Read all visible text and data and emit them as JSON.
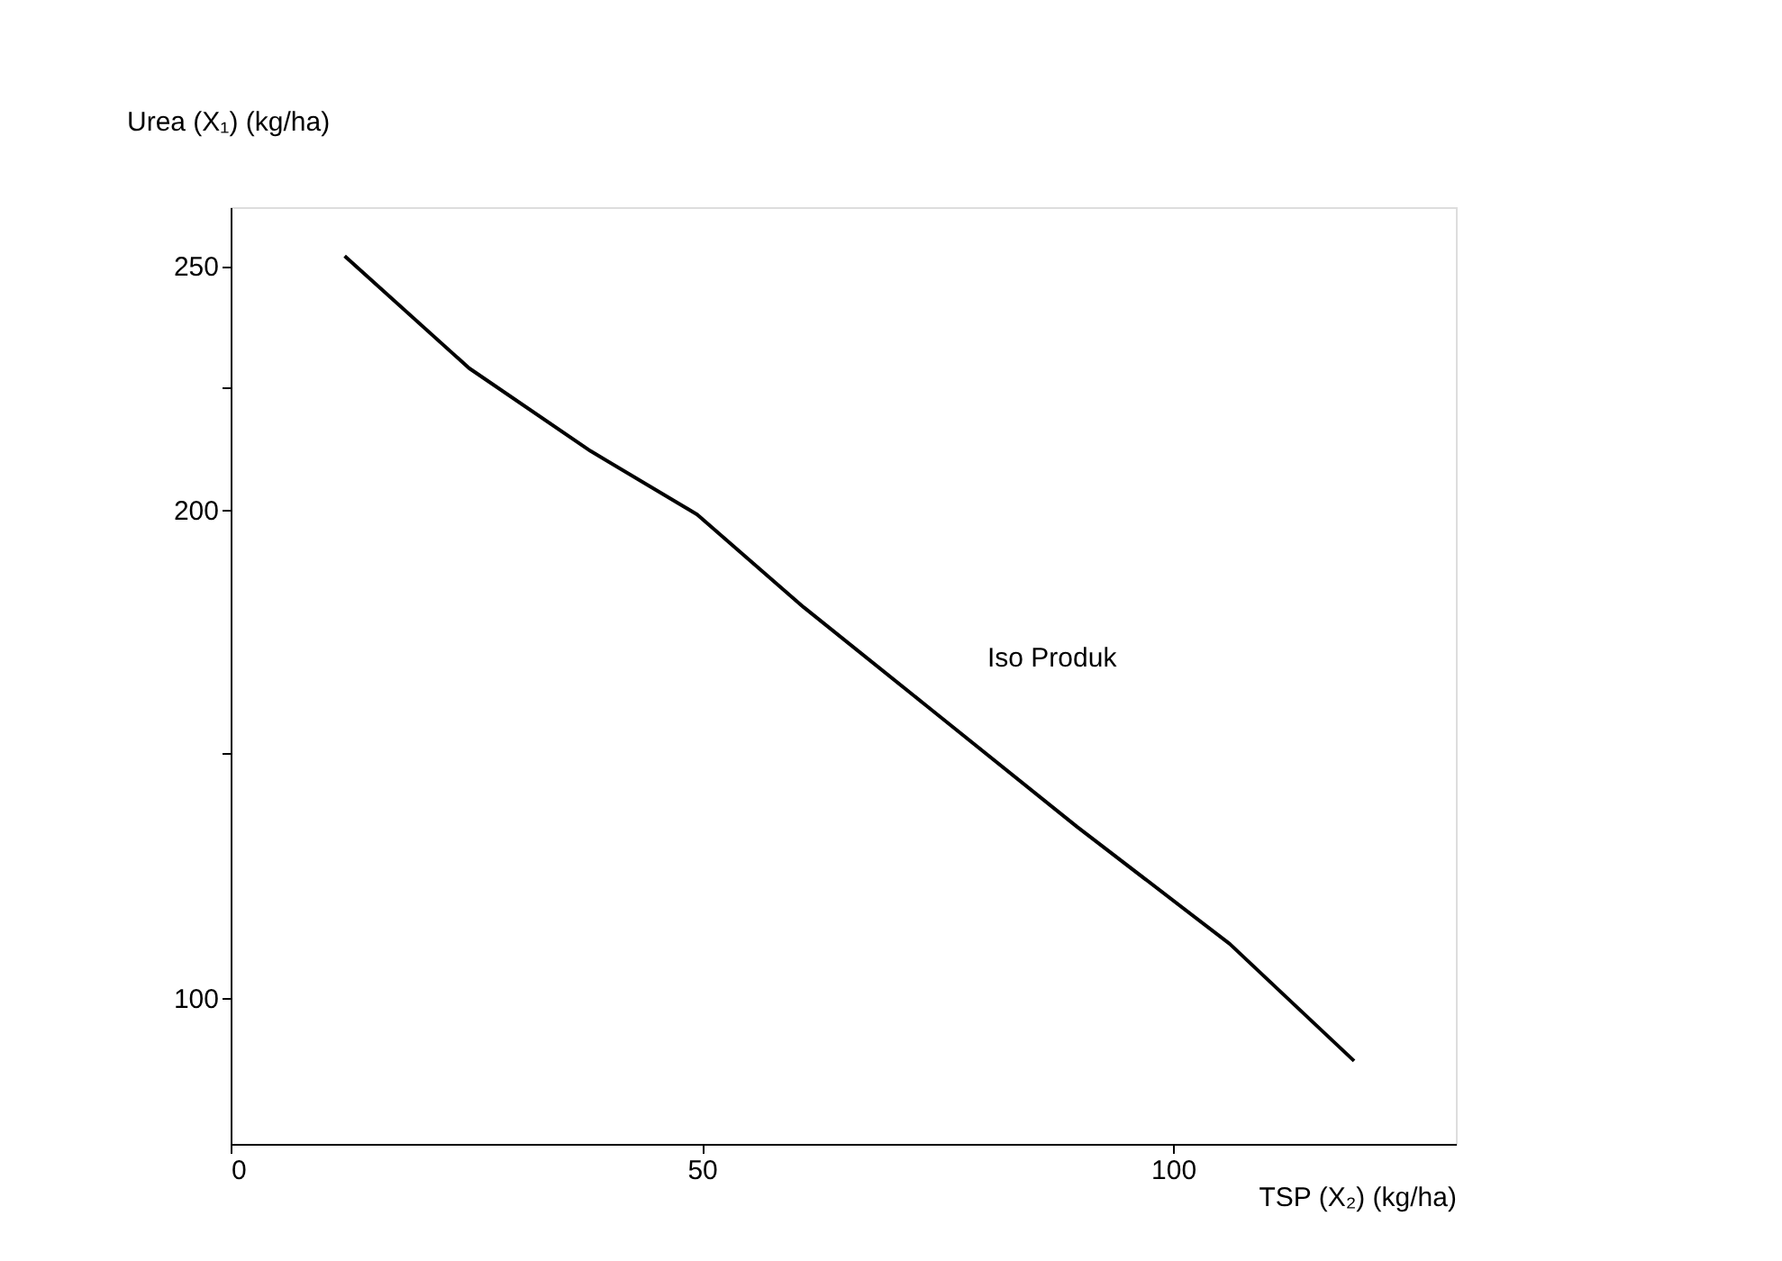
{
  "chart_data": {
    "type": "line",
    "xlabel": "TSP (X₂) (kg/ha)",
    "ylabel": "Urea (X₁) (kg/ha)",
    "annotations": [
      "Iso Produk"
    ],
    "x": [
      12.1,
      25.3,
      38.2,
      49.5,
      60.8,
      73.7,
      89.8,
      106,
      119.2
    ],
    "series": [
      {
        "color": "#000000",
        "values": [
          252,
          229,
          212,
          199,
          180,
          160,
          135,
          111,
          87
        ]
      }
    ],
    "xlim": [
      0,
      130
    ],
    "xticks": [
      0,
      50,
      100
    ],
    "ylim": [
      70,
      262
    ],
    "yticks": [
      100,
      {
        "value": 150,
        "label": null
      },
      200,
      {
        "value": 225,
        "label": null
      },
      250
    ],
    "grid": false,
    "marker": "none",
    "line_style": "solid"
  }
}
